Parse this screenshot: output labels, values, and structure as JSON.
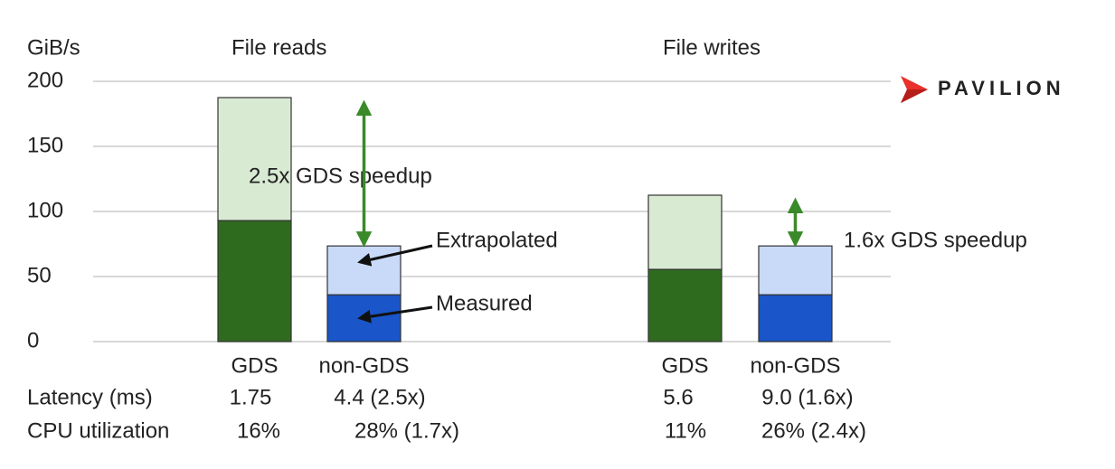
{
  "chart_data": {
    "type": "stacked_bar",
    "y_label": "GiB/s",
    "groups": [
      "File reads",
      "File writes"
    ],
    "categories": [
      "GDS",
      "non-GDS",
      "GDS",
      "non-GDS"
    ],
    "series": [
      {
        "name": "Measured",
        "colors": [
          "#2f6b1f",
          "#1a56c9",
          "#2f6b1f",
          "#1a56c9"
        ],
        "values": [
          93,
          36,
          55.5,
          36
        ]
      },
      {
        "name": "Extrapolated",
        "colors": [
          "#d9ead3",
          "#c9daf8",
          "#d9ead3",
          "#c9daf8"
        ],
        "values": [
          94.5,
          37.5,
          57,
          37.5
        ]
      }
    ],
    "ylim": [
      0,
      200
    ],
    "yticks": [
      0,
      50,
      100,
      150,
      200
    ],
    "grid": true,
    "annotations": [
      "2.5x GDS speedup",
      "1.6x GDS speedup"
    ]
  },
  "table": {
    "rows": [
      {
        "label": "Latency (ms)",
        "cells": [
          "1.75",
          "4.4 (2.5x)",
          "5.6",
          "9.0 (1.6x)"
        ]
      },
      {
        "label": "CPU utilization",
        "cells": [
          "16%",
          "28% (1.7x)",
          "11%",
          "26% (2.4x)"
        ]
      }
    ]
  },
  "logo": "PAVILION"
}
